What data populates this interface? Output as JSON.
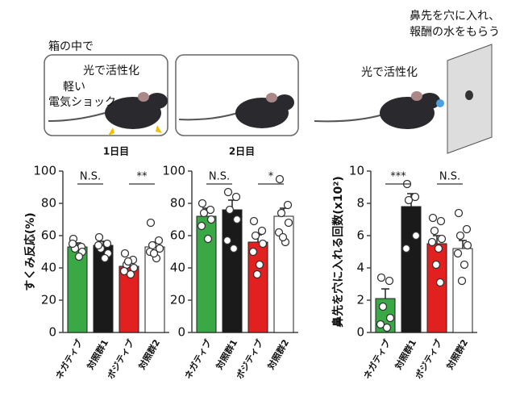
{
  "diagram": {
    "scene1": {
      "caption": "箱の中で",
      "light": "光で活性化",
      "shock": [
        "軽い",
        "電気ショック"
      ],
      "day": "1日目"
    },
    "scene2": {
      "day": "2日目"
    },
    "scene3": {
      "caption": [
        "鼻先を穴に入れ、",
        "報酬の水をもらう"
      ],
      "light": "光で活性化"
    }
  },
  "chart_data": [
    {
      "type": "bar",
      "ylabel": "すくみ反応(%)",
      "categories": [
        "ネガティブ",
        "対照群1",
        "ポジティブ",
        "対照群2"
      ],
      "colors": [
        "#3aa845",
        "#1a1a1a",
        "#e32020",
        "#ffffff"
      ],
      "values": [
        53,
        54,
        41,
        53
      ],
      "errors": [
        2.5,
        2.5,
        2.5,
        3
      ],
      "points": [
        [
          58,
          53,
          52,
          50,
          55,
          47
        ],
        [
          59,
          55,
          52,
          49,
          54,
          46
        ],
        [
          49,
          45,
          42,
          40,
          38,
          36,
          44
        ],
        [
          68,
          57,
          54,
          52,
          50,
          46,
          49
        ]
      ],
      "significance": [
        "N.S.",
        "**"
      ],
      "ylim": [
        0,
        100
      ],
      "yticks": [
        0,
        20,
        40,
        60,
        80,
        100
      ]
    },
    {
      "type": "bar",
      "categories": [
        "ネガティブ",
        "対照群1",
        "ポジティブ",
        "対照群2"
      ],
      "colors": [
        "#3aa845",
        "#1a1a1a",
        "#e32020",
        "#ffffff"
      ],
      "values": [
        72,
        76,
        56,
        72
      ],
      "errors": [
        5,
        6,
        4.5,
        5
      ],
      "points": [
        [
          80,
          76,
          74,
          70,
          66,
          58
        ],
        [
          87,
          84,
          76,
          70,
          57,
          52
        ],
        [
          69,
          63,
          60,
          55,
          50,
          42,
          36
        ],
        [
          95,
          79,
          74,
          68,
          62,
          56,
          59
        ]
      ],
      "significance": [
        "N.S.",
        "*"
      ],
      "ylim": [
        0,
        100
      ],
      "yticks": [
        0,
        20,
        40,
        60,
        80,
        100
      ]
    },
    {
      "type": "bar",
      "ylabel": "鼻先を穴に入れる回数(x10²)",
      "categories": [
        "ネガティブ",
        "対照群1",
        "ポジティブ",
        "対照群2"
      ],
      "colors": [
        "#3aa845",
        "#1a1a1a",
        "#e32020",
        "#ffffff"
      ],
      "values": [
        2.1,
        7.8,
        5.5,
        5.2
      ],
      "errors": [
        0.6,
        0.8,
        0.5,
        0.5
      ],
      "points": [
        [
          3.4,
          3.2,
          1.6,
          0.9,
          0.5,
          0.3
        ],
        [
          9.2,
          8.4,
          8.2,
          6.0,
          5.2
        ],
        [
          7.1,
          6.9,
          6.3,
          5.8,
          5.6,
          5.2,
          4.2,
          3.1
        ],
        [
          7.4,
          6.4,
          6.0,
          5.4,
          4.9,
          4.2,
          3.2
        ]
      ],
      "significance": [
        "***",
        "N.S."
      ],
      "ylim": [
        0,
        10
      ],
      "yticks": [
        0,
        2,
        4,
        6,
        8,
        10
      ]
    }
  ]
}
